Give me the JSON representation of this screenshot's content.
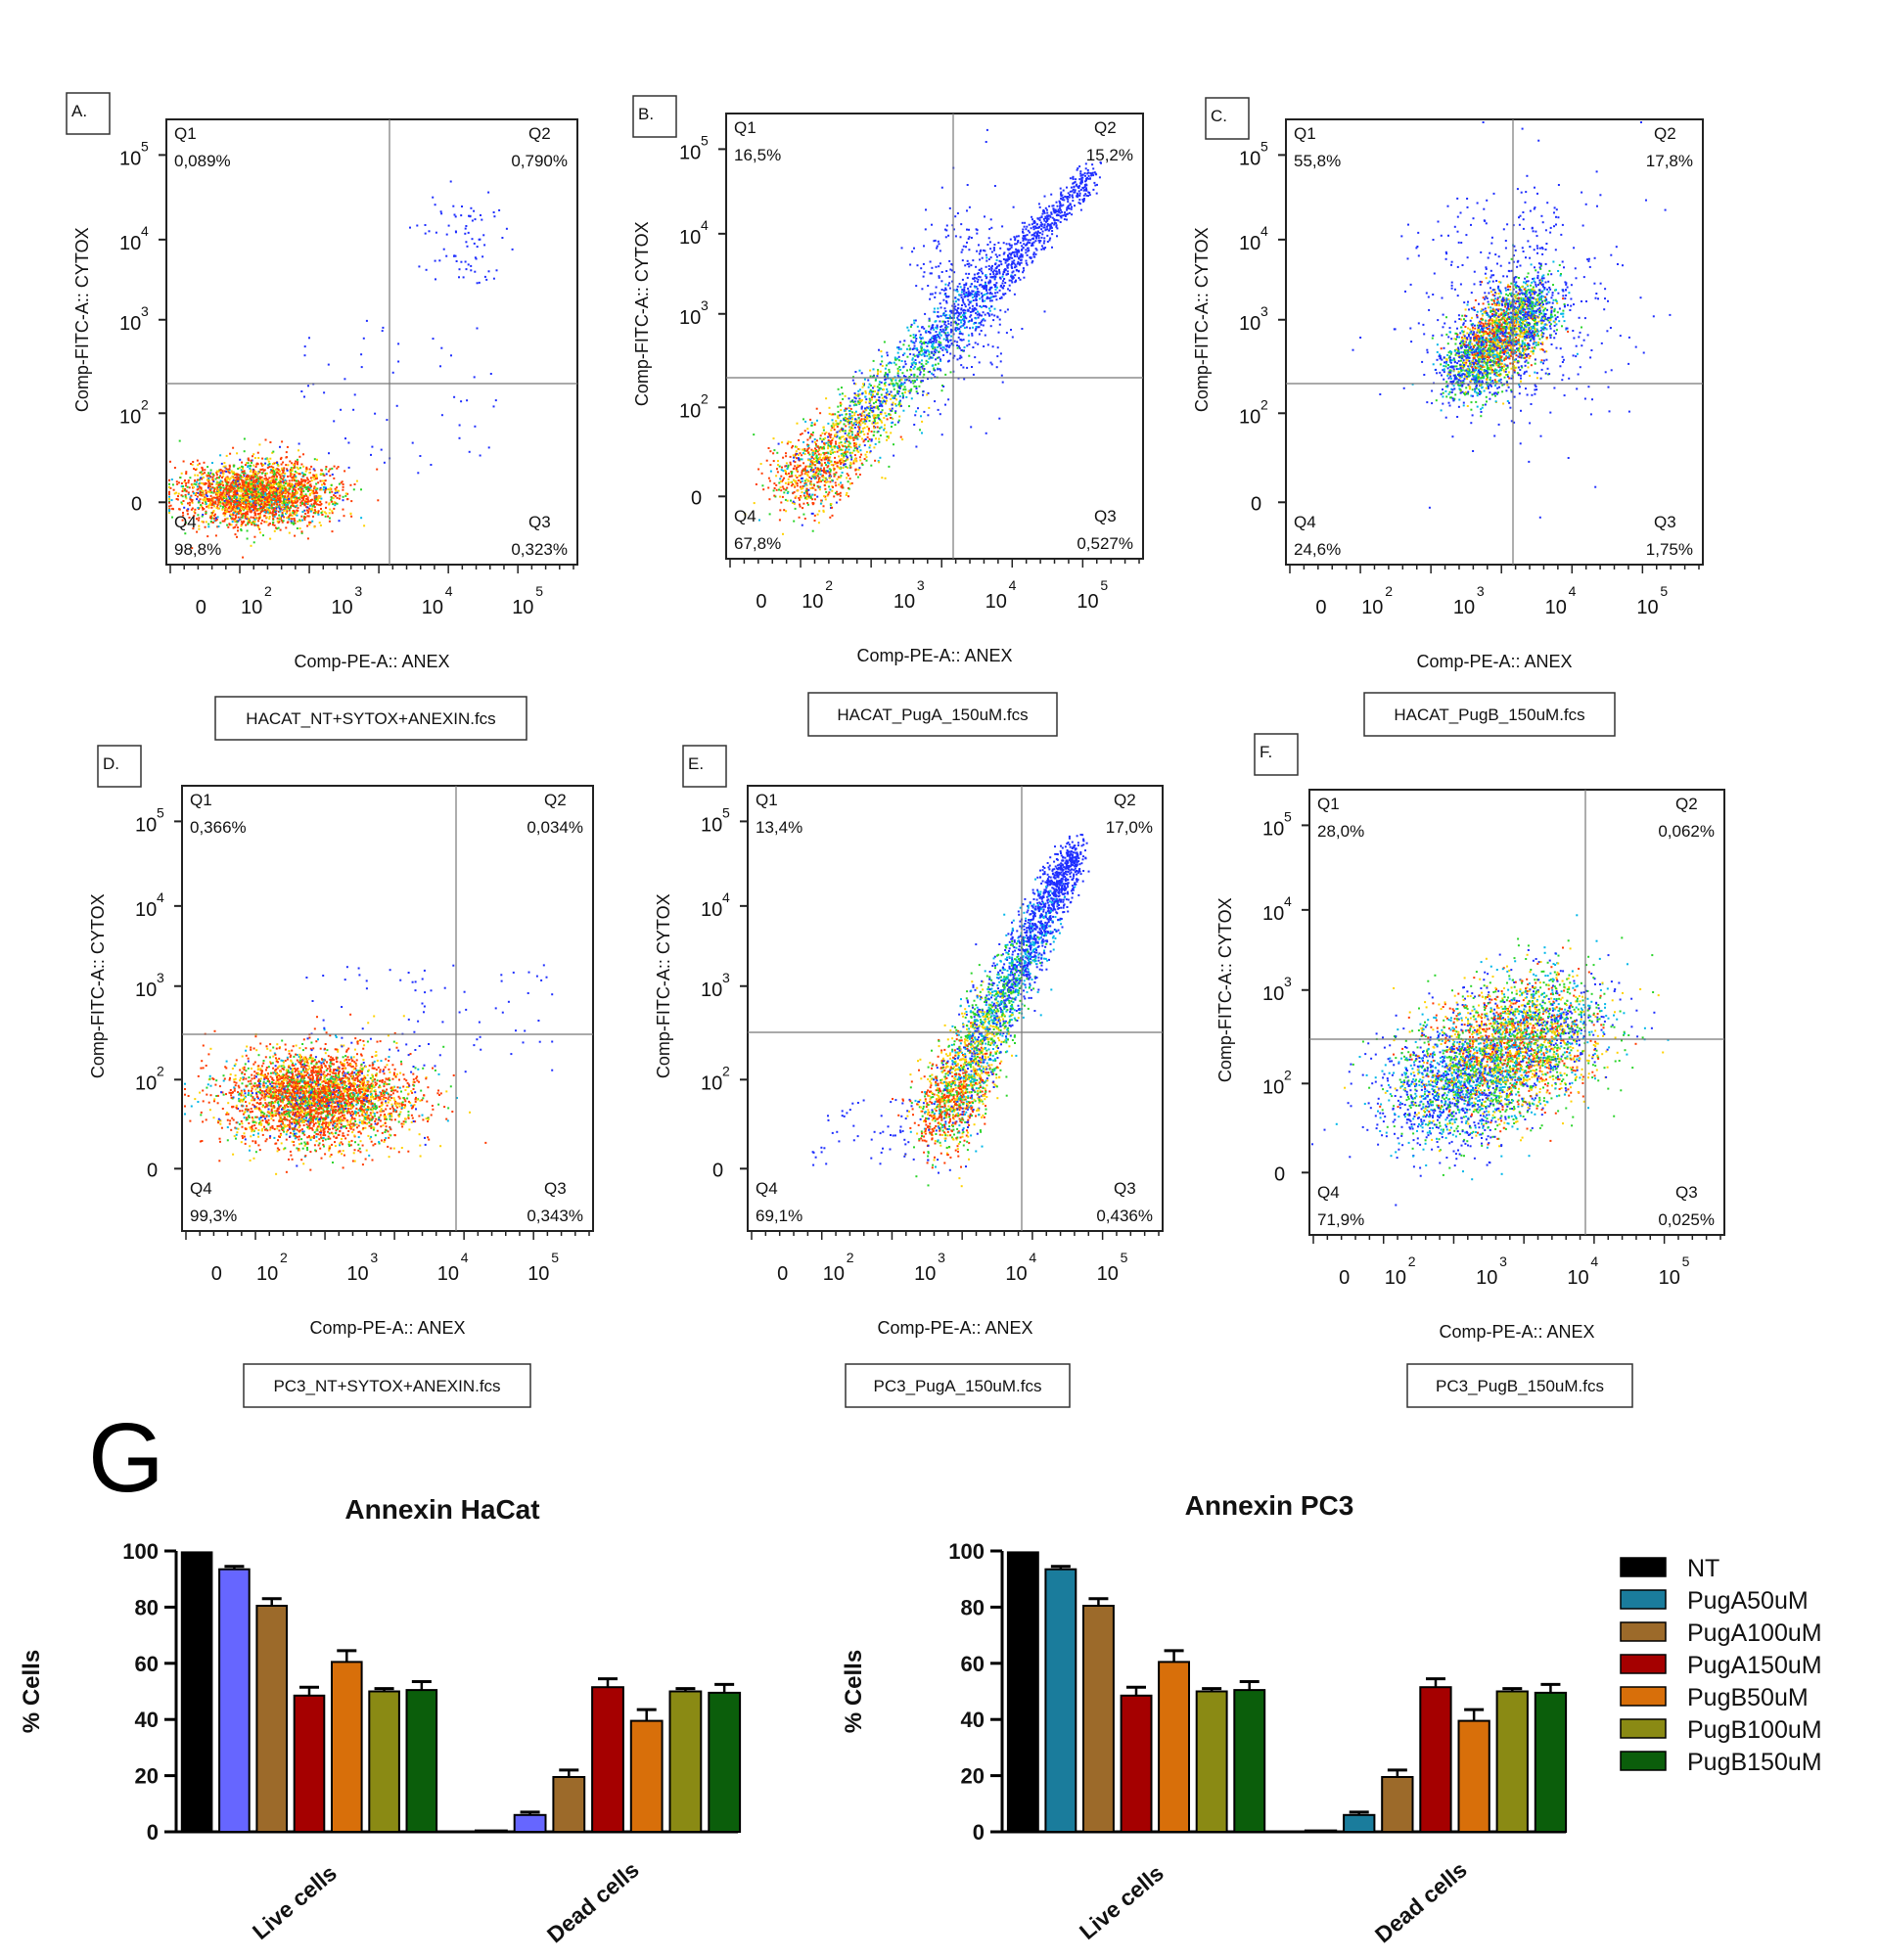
{
  "figure": {
    "panel_g_letter": "G",
    "flow_x_axis_label": "Comp-PE-A:: ANEX",
    "flow_y_axis_label": "Comp-FITC-A:: CYTOX",
    "flow_y_tick_labels": [
      "10",
      "10",
      "10",
      "10",
      "0"
    ],
    "flow_x_tick_labels": [
      "0",
      "10",
      "10",
      "10",
      "10"
    ],
    "flow_tick_exponents": [
      "5",
      "4",
      "3",
      "2"
    ],
    "flow_x_tick_exponents": [
      "2",
      "3",
      "4",
      "5"
    ],
    "quadrant_names": [
      "Q1",
      "Q2",
      "Q3",
      "Q4"
    ],
    "bar_y_axis_label": "% Cells",
    "bar_y_tick_labels": [
      "100",
      "80",
      "60",
      "40",
      "20",
      "0"
    ]
  },
  "chart_data": [
    {
      "type": "scatter",
      "panel_label": "A.",
      "file_label": "HACAT_NT+SYTOX+ANEXIN.fcs",
      "xlabel": "Comp-PE-A:: ANEX",
      "ylabel": "Comp-FITC-A:: CYTOX",
      "quadrants": {
        "Q1": "0,089%",
        "Q2": "0,790%",
        "Q3": "0,323%",
        "Q4": "98,8%"
      },
      "population_pattern": "cluster-low-left"
    },
    {
      "type": "scatter",
      "panel_label": "B.",
      "file_label": "HACAT_PugA_150uM.fcs",
      "xlabel": "Comp-PE-A:: ANEX",
      "ylabel": "Comp-FITC-A:: CYTOX",
      "quadrants": {
        "Q1": "16,5%",
        "Q2": "15,2%",
        "Q3": "0,527%",
        "Q4": "67,8%"
      },
      "population_pattern": "diagonal"
    },
    {
      "type": "scatter",
      "panel_label": "C.",
      "file_label": "HACAT_PugB_150uM.fcs",
      "xlabel": "Comp-PE-A:: ANEX",
      "ylabel": "Comp-FITC-A:: CYTOX",
      "quadrants": {
        "Q1": "55,8%",
        "Q2": "17,8%",
        "Q3": "1,75%",
        "Q4": "24,6%"
      },
      "population_pattern": "cluster-center"
    },
    {
      "type": "scatter",
      "panel_label": "D.",
      "file_label": "PC3_NT+SYTOX+ANEXIN.fcs",
      "xlabel": "Comp-PE-A:: ANEX",
      "ylabel": "Comp-FITC-A:: CYTOX",
      "quadrants": {
        "Q1": "0,366%",
        "Q2": "0,034%",
        "Q3": "0,343%",
        "Q4": "99,3%"
      },
      "population_pattern": "cluster-low-wide"
    },
    {
      "type": "scatter",
      "panel_label": "E.",
      "file_label": "PC3_PugA_150uM.fcs",
      "xlabel": "Comp-PE-A:: ANEX",
      "ylabel": "Comp-FITC-A:: CYTOX",
      "quadrants": {
        "Q1": "13,4%",
        "Q2": "17,0%",
        "Q3": "0,436%",
        "Q4": "69,1%"
      },
      "population_pattern": "diagonal-steep"
    },
    {
      "type": "scatter",
      "panel_label": "F.",
      "file_label": "PC3_PugB_150uM.fcs",
      "xlabel": "Comp-PE-A:: ANEX",
      "ylabel": "Comp-FITC-A:: CYTOX",
      "quadrants": {
        "Q1": "28,0%",
        "Q2": "0,062%",
        "Q3": "0,025%",
        "Q4": "71,9%"
      },
      "population_pattern": "cluster-broad"
    },
    {
      "type": "bar",
      "title": "Annexin HaCat",
      "ylabel": "% Cells",
      "ylim": [
        0,
        100
      ],
      "yticks": [
        0,
        20,
        40,
        60,
        80,
        100
      ],
      "categories": [
        "Live cells",
        "Dead cells"
      ],
      "series": [
        {
          "name": "NT",
          "color": "#000000",
          "values": [
            99.5,
            0.5
          ],
          "errors": [
            0,
            0
          ]
        },
        {
          "name": "PugA50uM",
          "color": "#6666ff",
          "values": [
            93.5,
            6
          ],
          "errors": [
            1,
            1
          ]
        },
        {
          "name": "PugA100uM",
          "color": "#9c6a2a",
          "values": [
            80.5,
            19.5
          ],
          "errors": [
            2.5,
            2.5
          ]
        },
        {
          "name": "PugA150uM",
          "color": "#a50000",
          "values": [
            48.5,
            51.5
          ],
          "errors": [
            3,
            3
          ]
        },
        {
          "name": "PugB50uM",
          "color": "#d86f0a",
          "values": [
            60.5,
            39.5
          ],
          "errors": [
            4,
            4
          ]
        },
        {
          "name": "PugB100uM",
          "color": "#8a8a14",
          "values": [
            50,
            50
          ],
          "errors": [
            1,
            1
          ]
        },
        {
          "name": "PugB150uM",
          "color": "#0b5e0b",
          "values": [
            50.5,
            49.5
          ],
          "errors": [
            3,
            3
          ]
        }
      ]
    },
    {
      "type": "bar",
      "title": "Annexin PC3",
      "ylabel": "% Cells",
      "ylim": [
        0,
        100
      ],
      "yticks": [
        0,
        20,
        40,
        60,
        80,
        100
      ],
      "categories": [
        "Live cells",
        "Dead cells"
      ],
      "legend_position": "right",
      "series": [
        {
          "name": "NT",
          "color": "#000000",
          "values": [
            99.5,
            0.5
          ],
          "errors": [
            0,
            0
          ]
        },
        {
          "name": "PugA50uM",
          "color": "#1a7c9c",
          "values": [
            93.5,
            6
          ],
          "errors": [
            1,
            1
          ]
        },
        {
          "name": "PugA100uM",
          "color": "#9c6a2a",
          "values": [
            80.5,
            19.5
          ],
          "errors": [
            2.5,
            2.5
          ]
        },
        {
          "name": "PugA150uM",
          "color": "#a50000",
          "values": [
            48.5,
            51.5
          ],
          "errors": [
            3,
            3
          ]
        },
        {
          "name": "PugB50uM",
          "color": "#d86f0a",
          "values": [
            60.5,
            39.5
          ],
          "errors": [
            4,
            4
          ]
        },
        {
          "name": "PugB100uM",
          "color": "#8a8a14",
          "values": [
            50,
            50
          ],
          "errors": [
            1,
            1
          ]
        },
        {
          "name": "PugB150uM",
          "color": "#0b5e0b",
          "values": [
            50.5,
            49.5
          ],
          "errors": [
            3,
            3
          ]
        }
      ]
    }
  ]
}
